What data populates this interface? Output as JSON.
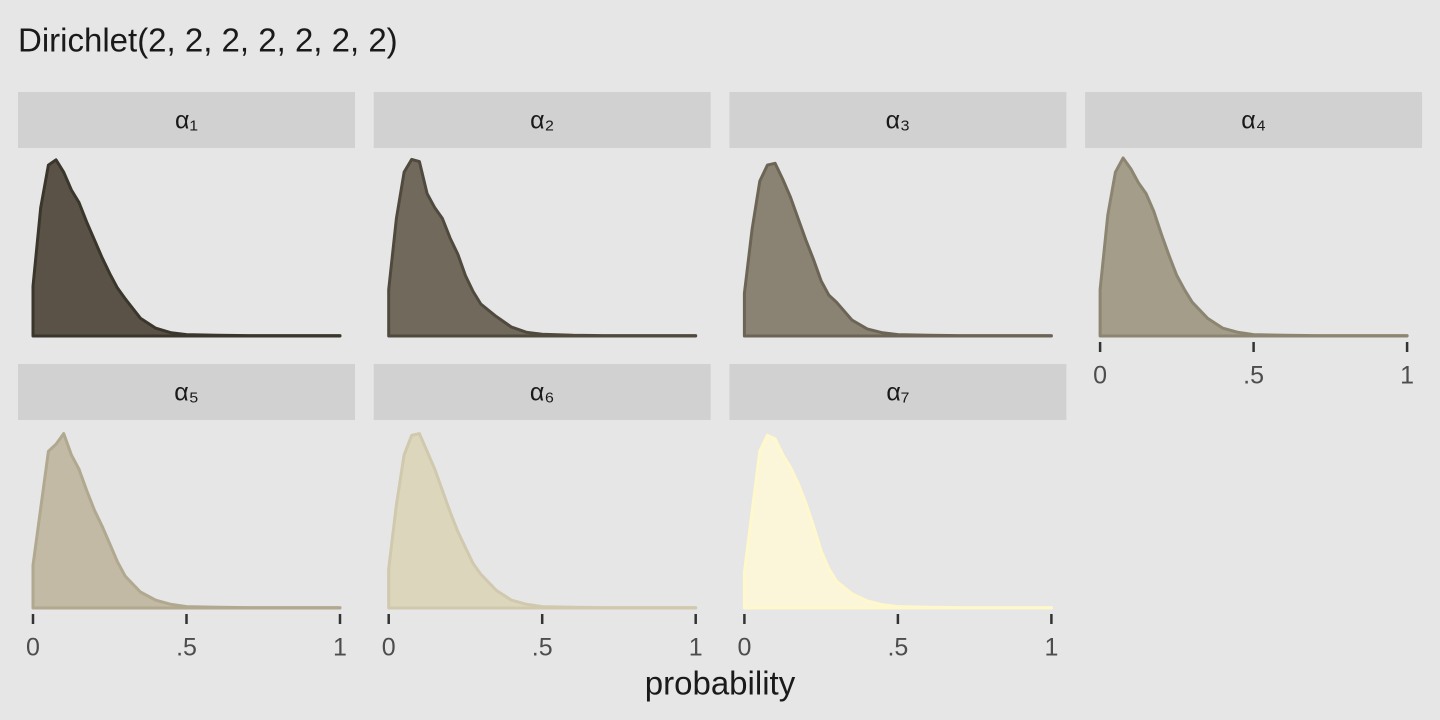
{
  "chart_data": {
    "type": "density",
    "title": "Dirichlet(2, 2, 2, 2, 2, 2, 2)",
    "x_label": "probability",
    "x": [
      0,
      0.025,
      0.05,
      0.075,
      0.1,
      0.125,
      0.15,
      0.175,
      0.2,
      0.225,
      0.25,
      0.275,
      0.3,
      0.35,
      0.4,
      0.45,
      0.5,
      0.6,
      0.7,
      0.8,
      0.9,
      1
    ],
    "xlim": [
      0,
      1
    ],
    "xticks": [
      0,
      {
        "value": 0.5,
        "label": ".5"
      },
      1
    ],
    "ylim": [
      0,
      5
    ],
    "series": [
      {
        "name": "α₁",
        "color": "#5a5246",
        "line_color": "#3b362c",
        "values": [
          1.4,
          3.6,
          4.8,
          4.95,
          4.6,
          4.1,
          3.75,
          3.2,
          2.7,
          2.2,
          1.75,
          1.35,
          1.05,
          0.5,
          0.22,
          0.09,
          0.04,
          0.02,
          0.01,
          0.01,
          0.01,
          0.01
        ]
      },
      {
        "name": "α₂",
        "color": "#716a5c",
        "line_color": "#504a3e",
        "values": [
          1.3,
          3.3,
          4.6,
          4.96,
          4.9,
          4.0,
          3.6,
          3.3,
          2.75,
          2.3,
          1.7,
          1.25,
          0.9,
          0.55,
          0.25,
          0.1,
          0.05,
          0.02,
          0.01,
          0.01,
          0.01,
          0.01
        ]
      },
      {
        "name": "α₃",
        "color": "#8a8373",
        "line_color": "#6c6555",
        "values": [
          1.2,
          3.0,
          4.35,
          4.8,
          4.85,
          4.4,
          3.9,
          3.3,
          2.7,
          2.15,
          1.55,
          1.15,
          0.95,
          0.45,
          0.2,
          0.09,
          0.04,
          0.02,
          0.01,
          0.01,
          0.01,
          0.01
        ]
      },
      {
        "name": "α₄",
        "color": "#a39d8a",
        "line_color": "#8c8572",
        "values": [
          1.3,
          3.4,
          4.6,
          5.0,
          4.7,
          4.3,
          4.0,
          3.5,
          2.85,
          2.25,
          1.7,
          1.3,
          0.95,
          0.5,
          0.22,
          0.1,
          0.04,
          0.02,
          0.01,
          0.01,
          0.01,
          0.01
        ]
      },
      {
        "name": "α₅",
        "color": "#c2baa4",
        "line_color": "#b0a88f",
        "values": [
          1.2,
          2.8,
          4.4,
          4.6,
          4.9,
          4.3,
          3.9,
          3.3,
          2.75,
          2.3,
          1.8,
          1.3,
          0.9,
          0.45,
          0.22,
          0.1,
          0.04,
          0.02,
          0.01,
          0.01,
          0.01,
          0.01
        ]
      },
      {
        "name": "α₆",
        "color": "#dcd6bd",
        "line_color": "#d0c9ad",
        "values": [
          1.1,
          2.9,
          4.3,
          4.85,
          4.9,
          4.4,
          3.9,
          3.3,
          2.7,
          2.15,
          1.7,
          1.25,
          0.95,
          0.5,
          0.22,
          0.1,
          0.04,
          0.02,
          0.01,
          0.01,
          0.01,
          0.01
        ]
      },
      {
        "name": "α₇",
        "color": "#fbf6d9",
        "line_color": "#fff8cc",
        "values": [
          1.0,
          2.7,
          4.4,
          4.85,
          4.75,
          4.3,
          3.95,
          3.5,
          2.95,
          2.3,
          1.6,
          1.1,
          0.75,
          0.4,
          0.2,
          0.09,
          0.04,
          0.02,
          0.01,
          0.01,
          0.01,
          0.01
        ]
      }
    ]
  }
}
